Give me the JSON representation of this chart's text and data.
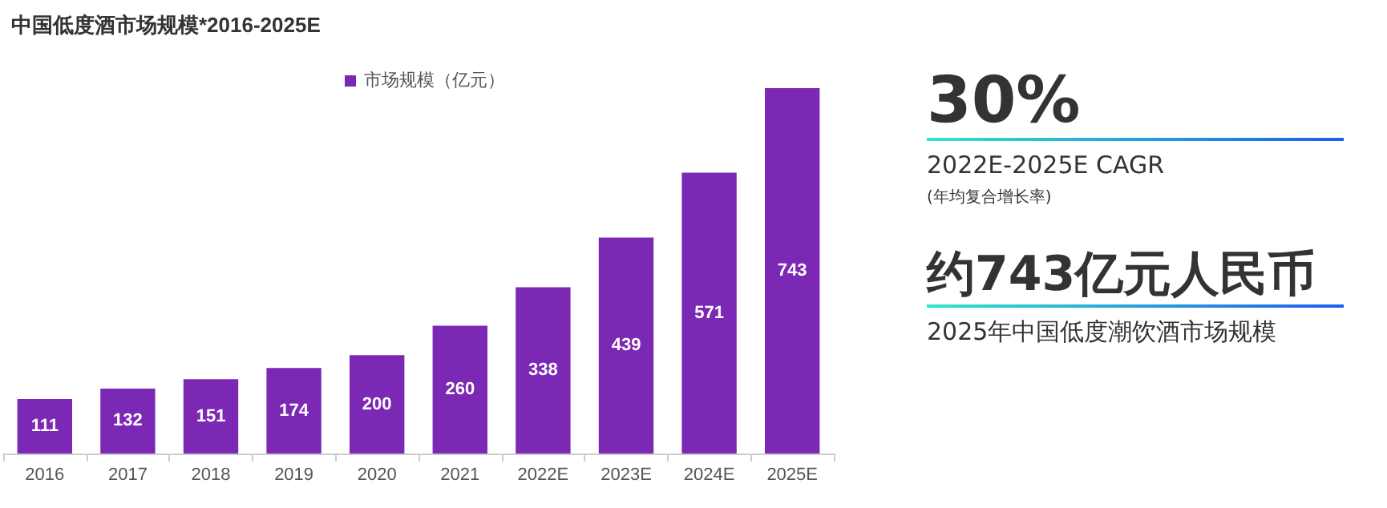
{
  "chart_data": {
    "type": "bar",
    "title": "中国低度酒市场规模*2016-2025E",
    "categories": [
      "2016",
      "2017",
      "2018",
      "2019",
      "2020",
      "2021",
      "2022E",
      "2023E",
      "2024E",
      "2025E"
    ],
    "series": [
      {
        "name": "市场规模（亿元）",
        "color": "#7b28b5",
        "values": [
          111,
          132,
          151,
          174,
          200,
          260,
          338,
          439,
          571,
          743
        ]
      }
    ],
    "data_labels": true,
    "legend": "top",
    "tick_labels": "x",
    "annotations": [
      "30%",
      "2022E-2025E CAGR",
      "(年均复合增长率)",
      "约743亿元人民币",
      "2025年中国低度潮饮酒市场规模"
    ]
  }
}
